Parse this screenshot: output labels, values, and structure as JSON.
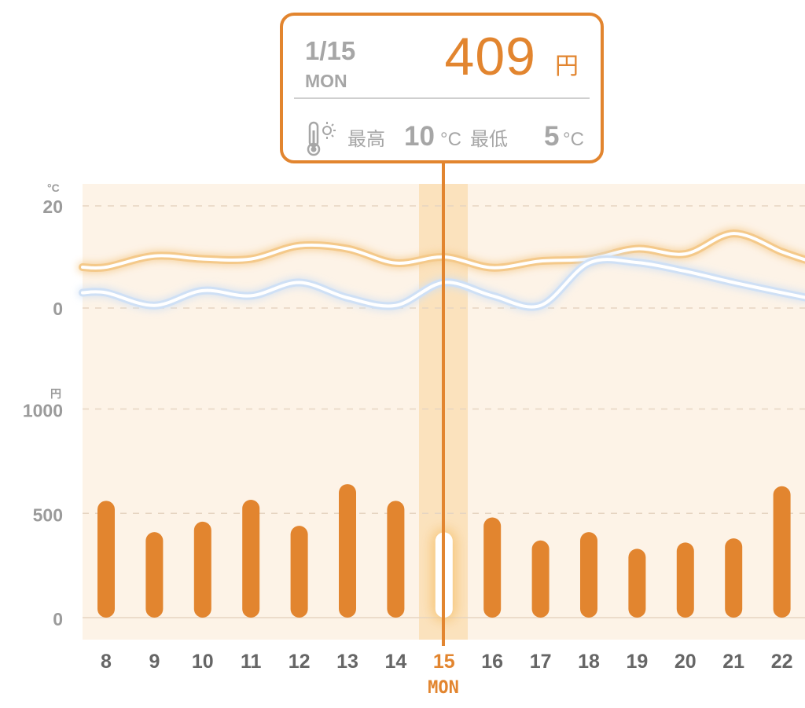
{
  "chart_data": {
    "type": "bar",
    "categories": [
      "8",
      "9",
      "10",
      "11",
      "12",
      "13",
      "14",
      "15",
      "16",
      "17",
      "18",
      "19",
      "20",
      "21",
      "22"
    ],
    "selected_index": 7,
    "selected_weekday": "MON",
    "temperature": {
      "unit": "°C",
      "ylim": [
        -4,
        21
      ],
      "yticks": [
        20,
        0
      ],
      "series": [
        {
          "color": "#f4c98a",
          "values": [
            8.0,
            10.2,
            9.6,
            9.6,
            12.2,
            11.6,
            8.8,
            10.0,
            7.9,
            9.2,
            9.6,
            11.6,
            10.6,
            14.6,
            11.0
          ]
        },
        {
          "color": "#cfe0f5",
          "values": [
            3.0,
            0.5,
            3.4,
            2.4,
            5.0,
            2.0,
            0.5,
            5.0,
            2.4,
            0.5,
            8.8,
            8.9,
            7.2,
            5.0,
            3.0
          ]
        }
      ]
    },
    "price": {
      "unit": "円",
      "ylim": [
        0,
        1000
      ],
      "yticks": [
        1000,
        500,
        0
      ],
      "color": "#e2852f",
      "highlight_color": "#ffffff",
      "values": [
        560,
        410,
        460,
        565,
        440,
        640,
        560,
        409,
        480,
        370,
        410,
        330,
        360,
        380,
        630
      ]
    }
  },
  "tooltip": {
    "date": "1/15",
    "weekday": "MON",
    "price": "409",
    "price_unit": "円",
    "high_label": "最高",
    "high_value": "10",
    "low_label": "最低",
    "low_value": "5",
    "temp_unit": "°C",
    "icon": "thermometer-sun-icon"
  },
  "colors": {
    "accent": "#e2852f",
    "panel_bg": "#fdf3e7",
    "selected_band": "#fbe2bd",
    "grid": "#e6d5c2",
    "text_muted": "#9b9b9b"
  }
}
